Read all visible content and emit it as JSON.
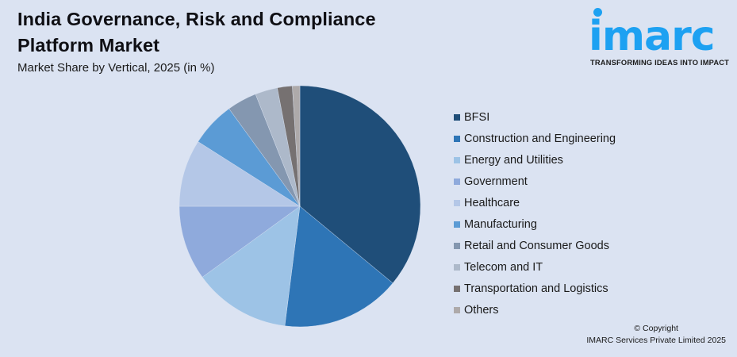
{
  "header": {
    "title": "India Governance, Risk and Compliance Platform Market",
    "subtitle": "Market Share by Vertical, 2025 (in %)"
  },
  "logo": {
    "word": "imarc",
    "tagline": "TRANSFORMING IDEAS INTO IMPACT",
    "color": "#1da1f2"
  },
  "footer": {
    "copyright_line1": "© Copyright",
    "copyright_line2": "IMARC Services Private Limited 2025"
  },
  "chart_data": {
    "type": "pie",
    "title": "India Governance, Risk and Compliance Platform Market",
    "subtitle": "Market Share by Vertical, 2025 (in %)",
    "legend_position": "right",
    "start_angle": "12 o'clock, clockwise",
    "categories": [
      "BFSI",
      "Construction and Engineering",
      "Energy and Utilities",
      "Government",
      "Healthcare",
      "Manufacturing",
      "Retail and Consumer Goods",
      "Telecom and IT",
      "Transportation and Logistics",
      "Others"
    ],
    "values": [
      36,
      16,
      13,
      10,
      9,
      6,
      4,
      3,
      2,
      1
    ],
    "colors": [
      "#1f4e79",
      "#2e75b6",
      "#9dc3e6",
      "#8faadc",
      "#b4c7e7",
      "#5b9bd5",
      "#8497b0",
      "#adb9ca",
      "#767171",
      "#aeaaaa"
    ]
  }
}
